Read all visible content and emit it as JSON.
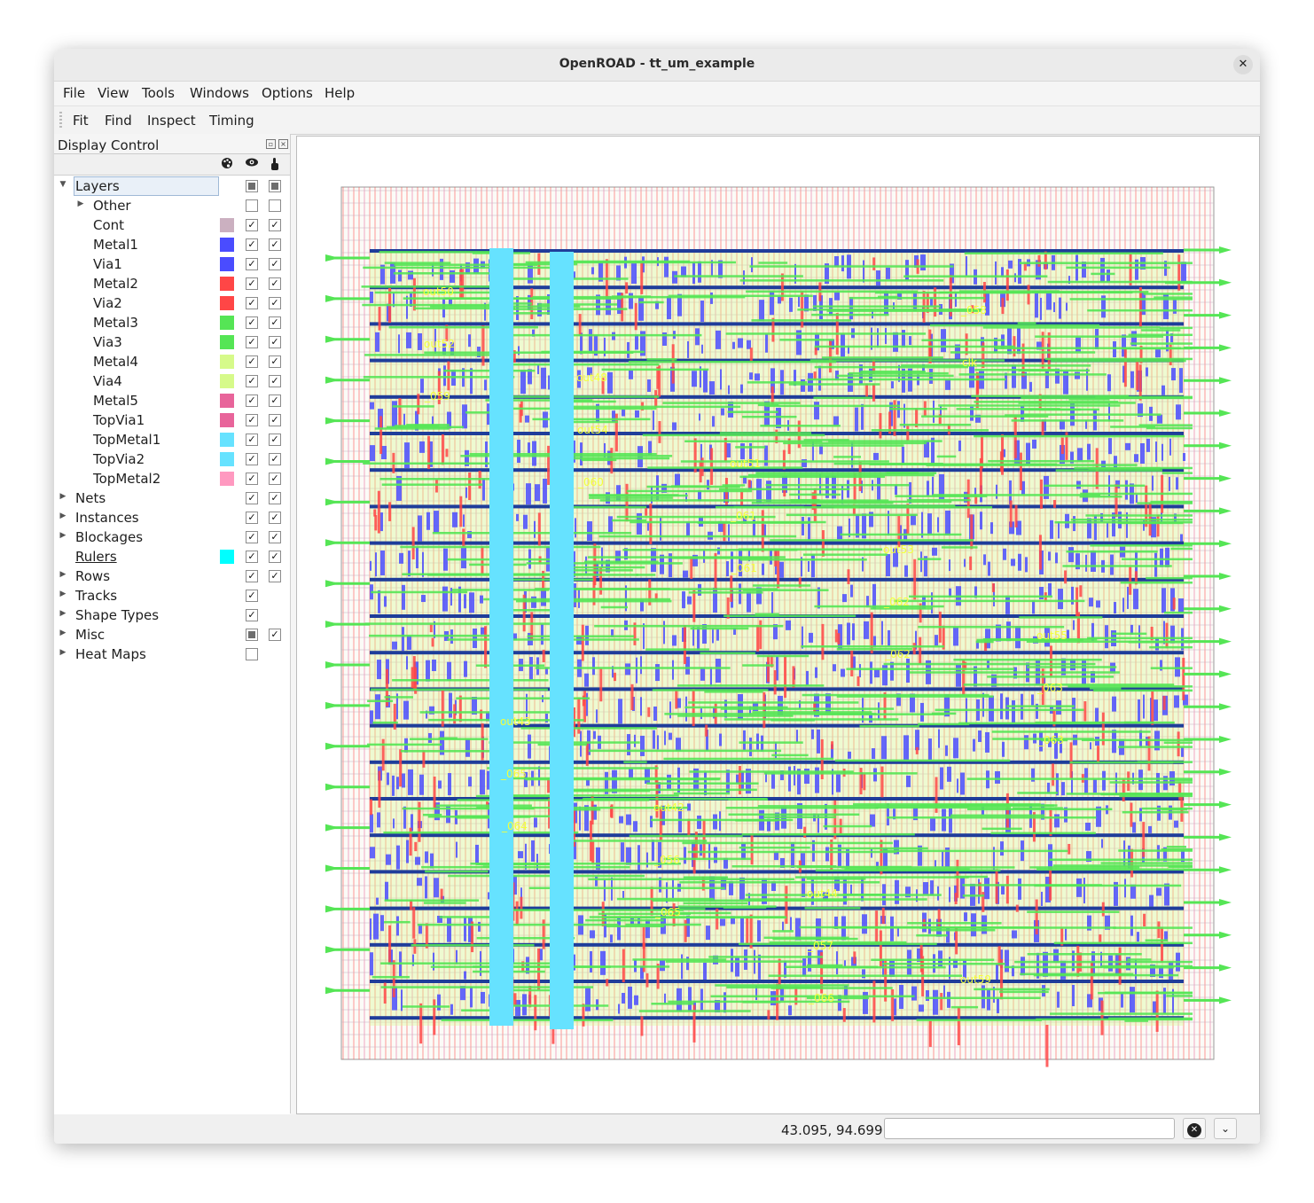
{
  "window": {
    "title": "OpenROAD - tt_um_example",
    "close_symbol": "✕"
  },
  "menu": [
    "File",
    "View",
    "Tools",
    "Windows",
    "Options",
    "Help"
  ],
  "toolbar": [
    "Fit",
    "Find",
    "Inspect",
    "Timing"
  ],
  "display_control": {
    "title": "Display Control",
    "layers_group": "Layers",
    "layers": [
      {
        "label": "Other",
        "expander": true,
        "color": null,
        "visible": false,
        "selectable": false
      },
      {
        "label": "Cont",
        "color": "#cbb0c0",
        "visible": true,
        "selectable": true
      },
      {
        "label": "Metal1",
        "color": "#4a4cff",
        "visible": true,
        "selectable": true
      },
      {
        "label": "Via1",
        "color": "#4a4cff",
        "visible": true,
        "selectable": true
      },
      {
        "label": "Metal2",
        "color": "#ff4646",
        "visible": true,
        "selectable": true
      },
      {
        "label": "Via2",
        "color": "#ff4646",
        "visible": true,
        "selectable": true
      },
      {
        "label": "Metal3",
        "color": "#55e555",
        "visible": true,
        "selectable": true
      },
      {
        "label": "Via3",
        "color": "#55e555",
        "visible": true,
        "selectable": true
      },
      {
        "label": "Metal4",
        "color": "#d6fa8a",
        "visible": true,
        "selectable": true
      },
      {
        "label": "Via4",
        "color": "#d6fa8a",
        "visible": true,
        "selectable": true
      },
      {
        "label": "Metal5",
        "color": "#e8649a",
        "visible": true,
        "selectable": true
      },
      {
        "label": "TopVia1",
        "color": "#e8649a",
        "visible": true,
        "selectable": true
      },
      {
        "label": "TopMetal1",
        "color": "#66e2ff",
        "visible": true,
        "selectable": true
      },
      {
        "label": "TopVia2",
        "color": "#66e2ff",
        "visible": true,
        "selectable": true
      },
      {
        "label": "TopMetal2",
        "color": "#ff99c0",
        "visible": true,
        "selectable": true
      }
    ],
    "groups": [
      {
        "label": "Nets",
        "expander": true,
        "color": null,
        "visible": "on",
        "selectable": "on"
      },
      {
        "label": "Instances",
        "expander": true,
        "color": null,
        "visible": "on",
        "selectable": "on"
      },
      {
        "label": "Blockages",
        "expander": true,
        "color": null,
        "visible": "on",
        "selectable": "on"
      },
      {
        "label": "Rulers",
        "expander": false,
        "underline": true,
        "color": "#00ffff",
        "visible": "on",
        "selectable": "on"
      },
      {
        "label": "Rows",
        "expander": true,
        "color": null,
        "visible": "on",
        "selectable": "on"
      },
      {
        "label": "Tracks",
        "expander": true,
        "color": null,
        "visible": "on",
        "selectable": "none"
      },
      {
        "label": "Shape Types",
        "expander": true,
        "color": null,
        "visible": "on",
        "selectable": "none"
      },
      {
        "label": "Misc",
        "expander": true,
        "color": null,
        "visible": "partial",
        "selectable": "on"
      },
      {
        "label": "Heat Maps",
        "expander": true,
        "color": null,
        "visible": "off",
        "selectable": "none"
      }
    ]
  },
  "layout_labels": [
    "out50",
    "out48",
    "out51",
    "out53",
    "out55",
    "out43",
    "out42",
    "out44",
    "out59",
    "out52",
    "out54",
    "_061",
    "_062",
    "_063",
    "_065",
    "_056",
    "_057",
    "_058",
    "_059",
    "_060",
    "_061",
    "_062",
    "_063",
    "_064",
    "_065",
    "_066",
    "clk"
  ],
  "status": {
    "coordinates": "43.095, 94.699",
    "command_value": ""
  }
}
